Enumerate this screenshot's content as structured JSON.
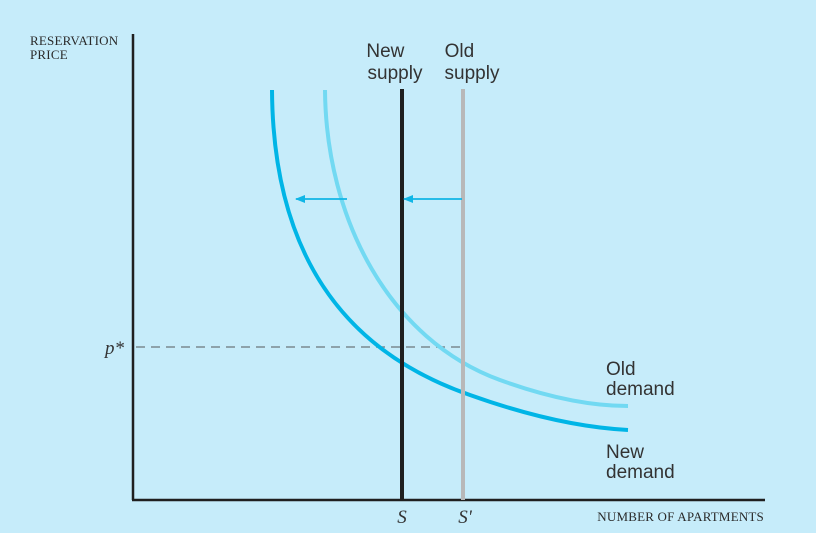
{
  "labels": {
    "y_axis": [
      "RESERVATION",
      "PRICE"
    ],
    "x_axis": "NUMBER OF APARTMENTS",
    "new_supply": [
      "New",
      "supply"
    ],
    "old_supply": [
      "Old",
      "supply"
    ],
    "old_demand": [
      "Old",
      "demand"
    ],
    "new_demand": [
      "New",
      "demand"
    ],
    "price_tick": "p*",
    "quantity_S": "S",
    "quantity_S_prime": "S'"
  },
  "colors": {
    "background": "#c6ecfa",
    "axis": "#1f1f1f",
    "new_supply": "#1f1f1f",
    "old_supply": "#b8b8b8",
    "new_demand": "#00b5e6",
    "old_demand": "#72d9f2",
    "arrow": "#10b6e6",
    "dashed": "#7a8a90"
  }
}
